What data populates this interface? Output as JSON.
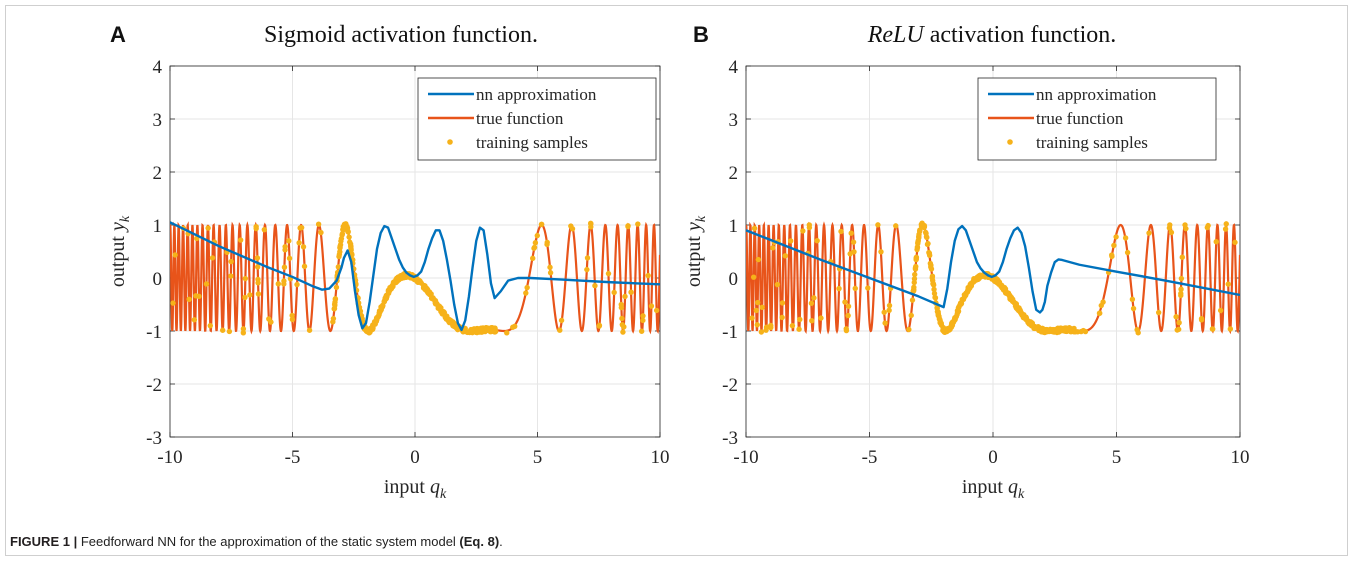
{
  "figure": {
    "caption_label": "FIGURE 1 |",
    "caption_text": " Feedforward NN for the approximation of the static system model ",
    "caption_ref": "(Eq. 8)",
    "caption_end": "."
  },
  "colors": {
    "nn": "#0072bd",
    "true": "#e8541a",
    "samples": "#f6b21a",
    "grid": "#e6e6e6",
    "axis": "#262626"
  },
  "chart_data": [
    {
      "panel_letter": "A",
      "type": "line",
      "title": "Sigmoid activation function.",
      "title_italic_part": "",
      "xlabel": "input",
      "xlabel_math": "q",
      "xlabel_sub": "k",
      "ylabel": "output",
      "ylabel_math": "y",
      "ylabel_sub": "k",
      "xlim": [
        -10,
        10
      ],
      "ylim": [
        -3,
        4
      ],
      "xticks": [
        "-10",
        "-5",
        "0",
        "5",
        "10"
      ],
      "yticks": [
        "-3",
        "-2",
        "-1",
        "0",
        "1",
        "2",
        "3",
        "4"
      ],
      "grid": true,
      "legend_position": "top-right",
      "series": [
        {
          "name": "nn approximation",
          "type": "line"
        },
        {
          "name": "true function",
          "type": "line"
        },
        {
          "name": "training samples",
          "type": "scatter"
        }
      ],
      "true_function": "sin(0.1*(q^3-4*q^2-3*q)) sampled over [-10,10]",
      "nn_approximation": {
        "x": [
          -10,
          -8,
          -6,
          -5,
          -4.2,
          -3.8,
          -3.5,
          -3.2,
          -3.0,
          -2.9,
          -2.75,
          -2.6,
          -2.45,
          -2.3,
          -2.15,
          -2.0,
          -1.85,
          -1.7,
          -1.55,
          -1.4,
          -1.25,
          -1.1,
          -0.95,
          -0.8,
          -0.65,
          -0.5,
          -0.35,
          -0.2,
          -0.05,
          0.1,
          0.25,
          0.4,
          0.55,
          0.7,
          0.85,
          1.0,
          1.15,
          1.3,
          1.45,
          1.6,
          1.75,
          1.9,
          2.05,
          2.2,
          2.35,
          2.5,
          2.65,
          2.8,
          2.95,
          3.1,
          3.25,
          3.5,
          3.8,
          4.2,
          4.7,
          6,
          8,
          10
        ],
        "y": [
          1.05,
          0.6,
          0.2,
          0.02,
          -0.15,
          -0.22,
          -0.2,
          -0.05,
          0.2,
          0.38,
          0.52,
          0.3,
          -0.25,
          -0.7,
          -0.95,
          -0.85,
          -0.45,
          0.05,
          0.55,
          0.85,
          0.98,
          0.95,
          0.75,
          0.55,
          0.35,
          0.2,
          0.1,
          0.05,
          0.02,
          0.05,
          0.12,
          0.3,
          0.55,
          0.75,
          0.9,
          0.9,
          0.7,
          0.35,
          -0.05,
          -0.5,
          -0.85,
          -0.98,
          -0.8,
          -0.35,
          0.2,
          0.7,
          0.95,
          0.9,
          0.45,
          -0.1,
          -0.38,
          -0.25,
          -0.05,
          0.0,
          0.0,
          -0.03,
          -0.08,
          -0.12
        ]
      }
    },
    {
      "panel_letter": "B",
      "type": "line",
      "title": " activation function.",
      "title_italic_part": "ReLU",
      "xlabel": "input",
      "xlabel_math": "q",
      "xlabel_sub": "k",
      "ylabel": "output",
      "ylabel_math": "y",
      "ylabel_sub": "k",
      "xlim": [
        -10,
        10
      ],
      "ylim": [
        -3,
        4
      ],
      "xticks": [
        "-10",
        "-5",
        "0",
        "5",
        "10"
      ],
      "yticks": [
        "-3",
        "-2",
        "-1",
        "0",
        "1",
        "2",
        "3",
        "4"
      ],
      "grid": true,
      "legend_position": "top-right",
      "series": [
        {
          "name": "nn approximation",
          "type": "line"
        },
        {
          "name": "true function",
          "type": "line"
        },
        {
          "name": "training samples",
          "type": "scatter"
        }
      ],
      "true_function": "sin(0.1*(q^3-4*q^2-3*q)) sampled over [-10,10]",
      "nn_approximation": {
        "x": [
          -10,
          -7,
          -5,
          -3,
          -2.0,
          -1.85,
          -1.7,
          -1.55,
          -1.4,
          -1.25,
          -1.1,
          -0.95,
          -0.8,
          -0.65,
          -0.5,
          -0.35,
          -0.2,
          -0.05,
          0.1,
          0.25,
          0.4,
          0.55,
          0.7,
          0.85,
          1.0,
          1.15,
          1.3,
          1.45,
          1.6,
          1.75,
          1.9,
          2.0,
          2.1,
          2.2,
          2.35,
          2.5,
          2.65,
          2.8,
          3.5,
          5,
          7,
          10
        ],
        "y": [
          0.9,
          0.35,
          0.0,
          -0.35,
          -0.55,
          -0.2,
          0.3,
          0.7,
          0.92,
          0.98,
          0.9,
          0.7,
          0.5,
          0.3,
          0.18,
          0.1,
          0.05,
          0.02,
          0.05,
          0.12,
          0.3,
          0.55,
          0.75,
          0.9,
          0.95,
          0.85,
          0.6,
          0.2,
          -0.25,
          -0.6,
          -0.65,
          -0.6,
          -0.45,
          -0.15,
          0.1,
          0.3,
          0.35,
          0.34,
          0.25,
          0.12,
          -0.05,
          -0.32
        ]
      }
    }
  ]
}
